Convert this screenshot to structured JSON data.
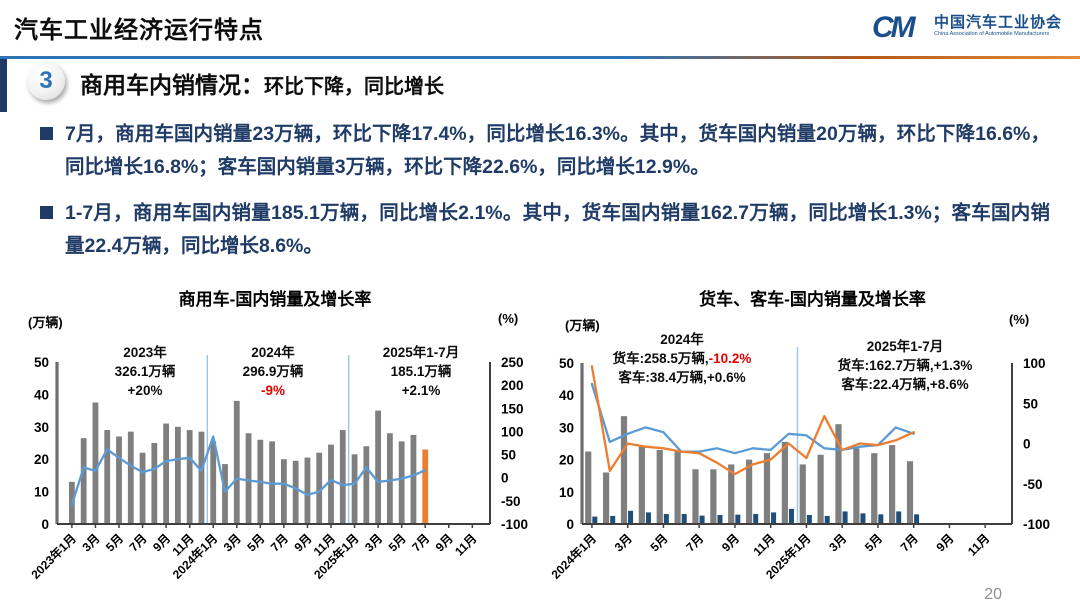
{
  "header": {
    "title": "汽车工业经济运行特点",
    "logo": {
      "mark_text": "CM",
      "org_cn": "中国汽车工业协会",
      "org_en": "China Association of Automobile Manufacturers"
    }
  },
  "section": {
    "number": "3",
    "title_main": "商用车内销情况：",
    "title_sub": "环比下降，同比增长"
  },
  "bullets": [
    {
      "text": "7月，商用车国内销量23万辆，环比下降17.4%，同比增长16.3%。其中，货车国内销量20万辆，环比下降16.6%，同比增长16.8%；客车国内销量3万辆，环比下降22.6%，同比增长12.9%。"
    },
    {
      "text": "1-7月，商用车国内销量185.1万辆，同比增长2.1%。其中，货车国内销量162.7万辆，同比增长1.3%；客车国内销量22.4万辆，同比增长8.6%。"
    }
  ],
  "page_number": "20",
  "colors": {
    "accent_blue": "#2e74b5",
    "navy_text": "#1f3b66",
    "bar_gray": "#7f7f7f",
    "line_blue": "#5b9bd5",
    "orange": "#ed7d31",
    "bus_navy": "#1f4e79",
    "separator": "#9dc3e6",
    "red": "#e60000",
    "logo_blue": "#1a4f8b"
  },
  "chart_data": [
    {
      "id": "commercial-vehicle",
      "type": "bar+line",
      "title": "商用车-国内销量及增长率",
      "left_axis_label": "(万辆)",
      "right_axis_label": "(%)",
      "left_range": [
        0,
        50
      ],
      "right_range": [
        -100,
        250
      ],
      "left_ticks": [
        0,
        10,
        20,
        30,
        40,
        50
      ],
      "right_ticks": [
        -100,
        -50,
        0,
        50,
        100,
        150,
        200,
        250
      ],
      "x_tick_labels": [
        "2023年1月",
        "3月",
        "5月",
        "7月",
        "9月",
        "11月",
        "2024年1月",
        "3月",
        "5月",
        "7月",
        "9月",
        "11月",
        "2025年1月",
        "3月",
        "5月",
        "7月",
        "9月",
        "11月"
      ],
      "total_slots": 36,
      "separator_slots": [
        12,
        24
      ],
      "bars": {
        "name": "商用车国内销量(万辆)",
        "color": "#7f7f7f",
        "last_color": "#ed7d31",
        "values": [
          13,
          26.5,
          37.5,
          29,
          27,
          28.5,
          22,
          25,
          31,
          30,
          29,
          28.5,
          25.5,
          18.5,
          38,
          28,
          26,
          25.5,
          20,
          19.5,
          20.5,
          22,
          24.5,
          29,
          21.5,
          24,
          35,
          28,
          25.5,
          27.5,
          23
        ]
      },
      "line": {
        "name": "同比增长率(%)",
        "color": "#5b9bd5",
        "values": [
          -58,
          22,
          15,
          61,
          43,
          26,
          12,
          19,
          36,
          40,
          43,
          15,
          89,
          -30,
          -2,
          -6,
          -9,
          -13,
          -13,
          -23,
          -37,
          -30,
          -5,
          -16,
          -13,
          22,
          -9,
          -6,
          -2,
          5,
          16.3
        ]
      },
      "annotations": [
        {
          "lines": [
            [
              {
                "t": "2023年"
              }
            ],
            [
              {
                "t": "326.1万辆"
              }
            ],
            [
              {
                "t": "+20%"
              }
            ]
          ]
        },
        {
          "lines": [
            [
              {
                "t": "2024年"
              }
            ],
            [
              {
                "t": "296.9万辆"
              }
            ],
            [
              {
                "t": "-9%",
                "red": true
              }
            ]
          ]
        },
        {
          "lines": [
            [
              {
                "t": "2025年1-7月"
              }
            ],
            [
              {
                "t": "185.1万辆"
              }
            ],
            [
              {
                "t": "+2.1%"
              }
            ]
          ]
        }
      ]
    },
    {
      "id": "truck-bus",
      "type": "bar+line",
      "title": "货车、客车-国内销量及增长率",
      "left_axis_label": "(万辆)",
      "right_axis_label": "(%)",
      "left_range": [
        0,
        50
      ],
      "right_range": [
        -100,
        100
      ],
      "left_ticks": [
        0,
        10,
        20,
        30,
        40,
        50
      ],
      "right_ticks": [
        -100,
        -50,
        0,
        50,
        100
      ],
      "x_tick_labels": [
        "2024年1月",
        "3月",
        "5月",
        "7月",
        "9月",
        "11月",
        "2025年1月",
        "3月",
        "5月",
        "7月",
        "9月",
        "11月"
      ],
      "total_slots": 24,
      "separator_slots": [
        12
      ],
      "bar_series": [
        {
          "name": "货车国内销量(万辆)",
          "color": "#7f7f7f",
          "values": [
            22.5,
            16,
            33.5,
            24,
            23,
            22.5,
            17,
            17,
            18.5,
            20,
            22,
            25.5,
            18.5,
            21.5,
            31,
            23.5,
            22,
            24.5,
            19.5
          ]
        },
        {
          "name": "客车国内销量(万辆)",
          "color": "#1f4e79",
          "values": [
            2.3,
            2.5,
            4.1,
            3.6,
            3.1,
            3.1,
            2.6,
            2.8,
            2.9,
            3.1,
            3.6,
            4.7,
            2.8,
            2.5,
            3.9,
            3.3,
            3.0,
            3.9,
            3.0
          ]
        }
      ],
      "line_series": [
        {
          "name": "增长率-蓝线(%)",
          "color": "#5b9bd5",
          "values": [
            74,
            2,
            12,
            20,
            14,
            -10,
            -10,
            -6,
            -12,
            -6,
            -8,
            12,
            10,
            -6,
            -8,
            -4,
            -2,
            20,
            12
          ]
        },
        {
          "name": "增长率-橙线(%)",
          "color": "#ed7d31",
          "values": [
            96,
            -34,
            0,
            -4,
            -6,
            -10,
            -12,
            -24,
            -38,
            -26,
            -20,
            0,
            -18,
            34,
            -8,
            0,
            -2,
            4,
            14
          ]
        }
      ],
      "annotations": [
        {
          "lines": [
            [
              {
                "t": "2024年"
              }
            ],
            [
              {
                "t": "货车:258.5万辆,"
              },
              {
                "t": "-10.2%",
                "red": true
              }
            ],
            [
              {
                "t": "客车:38.4万辆,+0.6%"
              }
            ]
          ]
        },
        {
          "lines": [
            [
              {
                "t": "2025年1-7月"
              }
            ],
            [
              {
                "t": "货车:162.7万辆,+1.3%"
              }
            ],
            [
              {
                "t": "客车:22.4万辆,+8.6%"
              }
            ]
          ]
        }
      ]
    }
  ]
}
